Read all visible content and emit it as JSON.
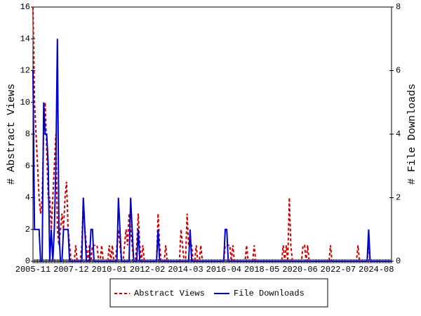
{
  "chart_data": {
    "type": "line",
    "x": [
      "2005-11",
      null,
      null,
      null,
      null,
      null,
      null,
      null,
      null,
      null,
      null,
      null,
      null,
      null,
      null,
      null,
      null,
      null,
      null,
      null,
      null,
      null,
      null,
      null,
      null,
      "2007-12",
      null,
      null,
      null,
      null,
      null,
      null,
      null,
      null,
      null,
      null,
      null,
      null,
      null,
      null,
      null,
      null,
      null,
      null,
      null,
      null,
      null,
      null,
      null,
      null,
      "2010-01",
      null,
      null,
      null,
      null,
      null,
      null,
      null,
      null,
      null,
      null,
      null,
      null,
      null,
      null,
      null,
      null,
      null,
      null,
      null,
      null,
      null,
      null,
      null,
      null,
      "2012-02",
      null,
      null,
      null,
      null,
      null,
      null,
      null,
      null,
      null,
      null,
      null,
      null,
      null,
      null,
      null,
      null,
      null,
      null,
      null,
      null,
      null,
      null,
      null,
      null,
      "2014-03",
      null,
      null,
      null,
      null,
      null,
      null,
      null,
      null,
      null,
      null,
      null,
      null,
      null,
      null,
      null,
      null,
      null,
      null,
      null,
      null,
      null,
      null,
      null,
      null,
      "2016-04",
      null,
      null,
      null,
      null,
      null,
      null,
      null,
      null,
      null,
      null,
      null,
      null,
      null,
      null,
      null,
      null,
      null,
      null,
      null,
      null,
      null,
      null,
      null,
      null,
      "2018-05",
      null,
      null,
      null,
      null,
      null,
      null,
      null,
      null,
      null,
      null,
      null,
      null,
      null,
      null,
      null,
      null,
      null,
      null,
      null,
      null,
      null,
      null,
      null,
      null,
      "2020-06",
      null,
      null,
      null,
      null,
      null,
      null,
      null,
      null,
      null,
      null,
      null,
      null,
      null,
      null,
      null,
      null,
      null,
      null,
      null,
      null,
      null,
      null,
      null,
      null,
      "2022-07",
      null,
      null,
      null,
      null,
      null,
      null,
      null,
      null,
      null,
      null,
      null,
      null,
      null,
      null,
      null,
      null,
      null,
      null,
      null,
      null,
      null,
      null,
      null,
      null,
      "2024-08",
      null,
      null,
      null,
      null,
      null,
      null,
      null,
      null,
      null,
      null
    ],
    "series": [
      {
        "name": "Abstract Views",
        "color": "#cc0000",
        "style": "dashed",
        "values": [
          16,
          10,
          8,
          6,
          4,
          3,
          4,
          8,
          10,
          7,
          4,
          4,
          2,
          4,
          6,
          8,
          2,
          1,
          2,
          3,
          2,
          4,
          5,
          2,
          1,
          0,
          0,
          0,
          1,
          0,
          0,
          0,
          1,
          4,
          2,
          1,
          0,
          1,
          0,
          1,
          1,
          1,
          1,
          0,
          0,
          1,
          0,
          0,
          0,
          0,
          1,
          0,
          1,
          0,
          0,
          1,
          2,
          1,
          0,
          0,
          1,
          2,
          1,
          3,
          2,
          1,
          0,
          0,
          1,
          3,
          1,
          0,
          1,
          0,
          0,
          0,
          0,
          0,
          0,
          0,
          0,
          0,
          3,
          1,
          0,
          0,
          0,
          1,
          0,
          0,
          0,
          0,
          0,
          0,
          0,
          0,
          0,
          2,
          1,
          0,
          0,
          3,
          1,
          1,
          1,
          0,
          0,
          1,
          0,
          0,
          1,
          0,
          0,
          0,
          0,
          0,
          0,
          0,
          0,
          0,
          0,
          0,
          0,
          0,
          0,
          0,
          1,
          1,
          1,
          1,
          0,
          1,
          0,
          0,
          0,
          0,
          0,
          0,
          0,
          0,
          1,
          0,
          0,
          0,
          0,
          1,
          0,
          0,
          0,
          0,
          0,
          0,
          0,
          0,
          0,
          0,
          0,
          0,
          0,
          0,
          0,
          0,
          0,
          0,
          1,
          0,
          1,
          0,
          4,
          1,
          0,
          0,
          0,
          0,
          0,
          0,
          0,
          1,
          1,
          0,
          1,
          0,
          0,
          0,
          0,
          0,
          0,
          0,
          0,
          0,
          0,
          0,
          0,
          0,
          0,
          1,
          0,
          0,
          0,
          0,
          0,
          0,
          0,
          0,
          0,
          0,
          0,
          0,
          0,
          0,
          0,
          0,
          0,
          1,
          0,
          0,
          0,
          0,
          0,
          0,
          1,
          0,
          0,
          0,
          0,
          0,
          0,
          0,
          0,
          0,
          0,
          0,
          0,
          0,
          0,
          0
        ]
      },
      {
        "name": "File Downloads",
        "color": "#0000cc",
        "style": "solid",
        "axis": "y2",
        "values": [
          6,
          1,
          1,
          1,
          1,
          0,
          0,
          5,
          4,
          4,
          3,
          0,
          1,
          0,
          1,
          3,
          7,
          1,
          0,
          0,
          1,
          1,
          1,
          1,
          0,
          0,
          0,
          0,
          0,
          0,
          0,
          0,
          0,
          2,
          1,
          0,
          0,
          0,
          1,
          1,
          0,
          0,
          0,
          0,
          0,
          0,
          0,
          0,
          0,
          0,
          0,
          0,
          0,
          0,
          0,
          0,
          2,
          1,
          0,
          0,
          0,
          0,
          0,
          0,
          2,
          1,
          0,
          0,
          0,
          1,
          0,
          0,
          0,
          0,
          0,
          0,
          0,
          0,
          0,
          0,
          0,
          0,
          1,
          0,
          0,
          0,
          0,
          0,
          0,
          0,
          0,
          0,
          0,
          0,
          0,
          0,
          0,
          0,
          0,
          0,
          0,
          0,
          0,
          1,
          0,
          0,
          0,
          0,
          0,
          0,
          0,
          0,
          0,
          0,
          0,
          0,
          0,
          0,
          0,
          0,
          0,
          0,
          0,
          0,
          0,
          0,
          1,
          1,
          0,
          0,
          0,
          0,
          0,
          0,
          0,
          0,
          0,
          0,
          0,
          0,
          0,
          0,
          0,
          0,
          0,
          0,
          0,
          0,
          0,
          0,
          0,
          0,
          0,
          0,
          0,
          0,
          0,
          0,
          0,
          0,
          0,
          0,
          0,
          0,
          0,
          0,
          0,
          0,
          0,
          0,
          0,
          0,
          0,
          0,
          0,
          0,
          0,
          0,
          0,
          0,
          0,
          0,
          0,
          0,
          0,
          0,
          0,
          0,
          0,
          0,
          0,
          0,
          0,
          0,
          0,
          0,
          0,
          0,
          0,
          0,
          0,
          0,
          0,
          0,
          0,
          0,
          0,
          0,
          0,
          0,
          0,
          0,
          0,
          0,
          0,
          0,
          0,
          0,
          0,
          0,
          1,
          0,
          0,
          0,
          0,
          0,
          0,
          0,
          0,
          0,
          0,
          0,
          0,
          0,
          0,
          0
        ]
      }
    ],
    "y_label": "# Abstract Views",
    "y2_label": "# File Downloads",
    "ylim": [
      0,
      16
    ],
    "yticks": [
      0,
      2,
      4,
      6,
      8,
      10,
      12,
      14,
      16
    ],
    "y2lim": [
      0,
      8
    ],
    "y2ticks": [
      0,
      2,
      4,
      6,
      8
    ],
    "legend": "bottom"
  }
}
